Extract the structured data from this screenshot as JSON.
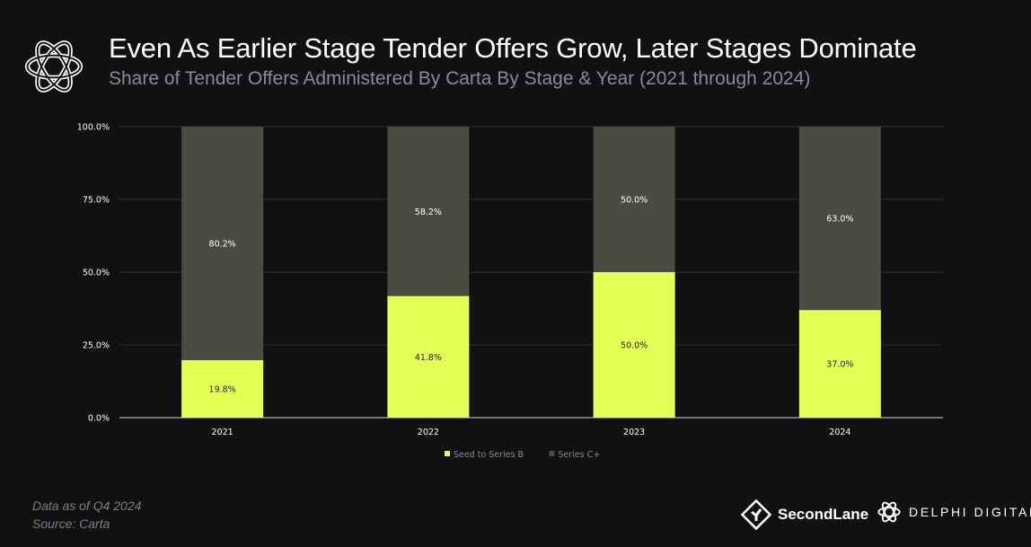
{
  "header": {
    "title": "Even As Earlier Stage Tender Offers Grow, Later Stages Dominate",
    "subtitle": "Share of Tender Offers Administered By Carta By Stage & Year (2021 through 2024)"
  },
  "chart_data": {
    "type": "bar",
    "stacked": true,
    "title": "Even As Earlier Stage Tender Offers Grow, Later Stages Dominate",
    "subtitle": "Share of Tender Offers Administered By Carta By Stage & Year (2021 through 2024)",
    "categories": [
      "2021",
      "2022",
      "2023",
      "2024"
    ],
    "series": [
      {
        "name": "Seed to Series B",
        "values": [
          19.8,
          41.8,
          50.0,
          37.0
        ],
        "labels": [
          "19.8%",
          "41.8%",
          "50.0%",
          "37.0%"
        ],
        "color": "#e6ff55"
      },
      {
        "name": "Series C+",
        "values": [
          80.2,
          58.2,
          50.0,
          63.0
        ],
        "labels": [
          "80.2%",
          "58.2%",
          "50.0%",
          "63.0%"
        ],
        "color": "#4a4b42"
      }
    ],
    "yticks": [
      0,
      25,
      50,
      75,
      100
    ],
    "ytick_labels": [
      "0.0%",
      "25.0%",
      "50.0%",
      "75.0%",
      "100.0%"
    ],
    "ylim": [
      0,
      100
    ],
    "xlabel": "",
    "ylabel": "",
    "grid": true,
    "legend": "bottom-center"
  },
  "footnotes": {
    "line1": "Data as of Q4 2024",
    "line2": "Source: Carta"
  },
  "branding": {
    "secondlane": "SecondLane",
    "delphi": "DELPHI DIGITAL"
  },
  "colors": {
    "background": "#111114",
    "accent": "#e6ff55",
    "series_c": "#4a4b42",
    "gridline": "#2e2e32"
  }
}
